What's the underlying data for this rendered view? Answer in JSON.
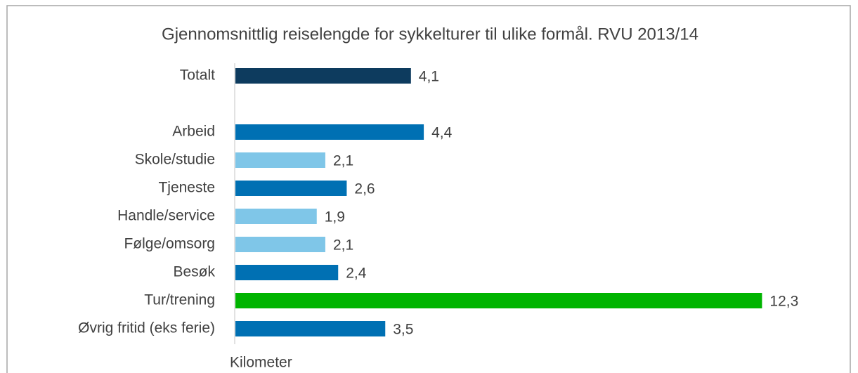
{
  "chart_data": {
    "type": "bar",
    "orientation": "horizontal",
    "title": "Gjennomsnittlig reiselengde for sykkelturer til ulike formål. RVU 2013/14",
    "categories": [
      "Totalt",
      null,
      "Arbeid",
      "Skole/studie",
      "Tjeneste",
      "Handle/service",
      "Følge/omsorg",
      "Besøk",
      "Tur/trening",
      "Øvrig fritid (eks ferie)"
    ],
    "values": [
      4.1,
      null,
      4.4,
      2.1,
      2.6,
      1.9,
      2.1,
      2.4,
      12.3,
      3.5
    ],
    "value_labels": [
      "4,1",
      null,
      "4,4",
      "2,1",
      "2,6",
      "1,9",
      "2,1",
      "2,4",
      "12,3",
      "3,5"
    ],
    "colors": [
      "#0d3b5e",
      null,
      "#0070b3",
      "#7fc6e8",
      "#0070b3",
      "#7fc6e8",
      "#7fc6e8",
      "#0070b3",
      "#00b400",
      "#0070b3"
    ],
    "xlabel": "Kilometer",
    "xlim": [
      0,
      14
    ]
  }
}
